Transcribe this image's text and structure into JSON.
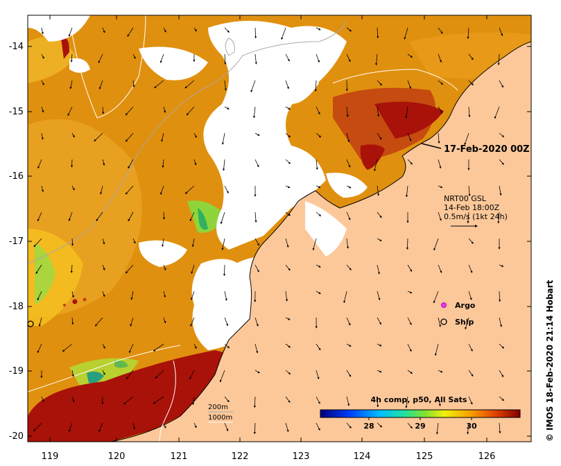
{
  "map": {
    "date_label": "17-Feb-2020 00Z",
    "vector_legend": {
      "source": "NRT00 GSL",
      "time": "14-Feb 18:00Z",
      "scale": "0.5m/s (1kt 24h)"
    },
    "markers": {
      "argo": "Argo",
      "ship": "Ship"
    },
    "isobaths": {
      "shallow": "200m",
      "deep": "1000m"
    },
    "colorbar": {
      "title": "4h comp, p50, All Sats",
      "ticks": [
        "28",
        "29",
        "30"
      ]
    },
    "credit": "© IMOS 18-Feb-2020 21:14 Hobart",
    "lon_ticks": [
      "119",
      "120",
      "121",
      "122",
      "123",
      "124",
      "125",
      "126"
    ],
    "lat_ticks": [
      "-14",
      "-15",
      "-16",
      "-17",
      "-18",
      "-19",
      "-20"
    ],
    "colors": {
      "land": "#fcc89a",
      "sst_warm": "#e0900f",
      "sst_hot": "#a81208",
      "sst_cool": "#f4c020",
      "sst_green": "#8ed43a",
      "cloud": "#ffffff"
    }
  }
}
